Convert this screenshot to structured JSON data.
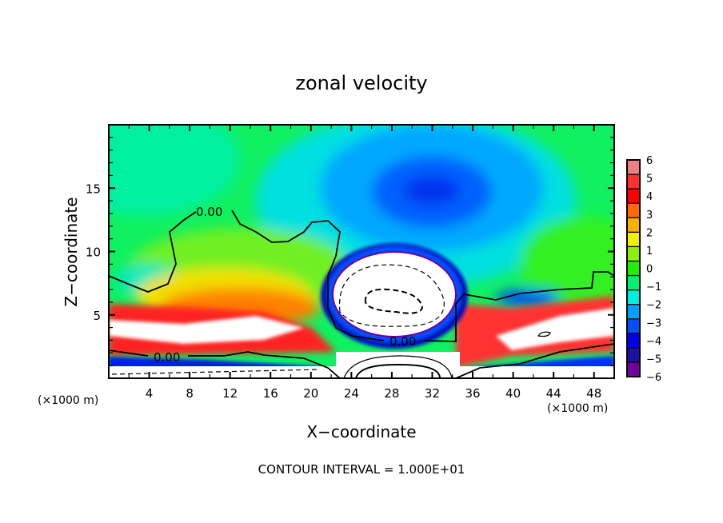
{
  "chart_data": {
    "type": "heatmap",
    "title": "zonal velocity",
    "xlabel": "X−coordinate",
    "ylabel": "Z−coordinate",
    "x_unit_left": "(×1000 m)",
    "x_unit_right": "(×1000 m)",
    "xlim": [
      0,
      50
    ],
    "ylim": [
      0,
      20
    ],
    "x_ticks": [
      "4",
      "8",
      "12",
      "16",
      "20",
      "24",
      "28",
      "32",
      "36",
      "40",
      "44",
      "48"
    ],
    "x_tick_values": [
      4,
      8,
      12,
      16,
      20,
      24,
      28,
      32,
      36,
      40,
      44,
      48
    ],
    "y_ticks": [
      "5",
      "10",
      "15"
    ],
    "y_tick_values": [
      5,
      10,
      15
    ],
    "footer": "CONTOUR INTERVAL = 1.000E+01",
    "contour_labels": [
      "0.00",
      "0.00",
      "0.00"
    ],
    "colorbar": {
      "labels": [
        "6",
        "5",
        "4",
        "3",
        "2",
        "1",
        "0",
        "−1",
        "−2",
        "−3",
        "−4",
        "−5",
        "−6"
      ],
      "values": [
        6,
        5,
        4,
        3,
        2,
        1,
        0,
        -1,
        -2,
        -3,
        -4,
        -5,
        -6
      ],
      "colors": [
        "#f08080",
        "#ff3030",
        "#ff0000",
        "#ff6a00",
        "#ffb000",
        "#f0f000",
        "#90f000",
        "#20f000",
        "#00f070",
        "#00f0e0",
        "#00a0ff",
        "#0050ff",
        "#0000e0",
        "#2010a0",
        "#7000a0"
      ]
    },
    "field_palette": {
      "white": "#ffffff",
      "pink": "#ff9090",
      "red": "#ff2020",
      "orange": "#ff8000",
      "yellow": "#f0f000",
      "lime": "#80ff00",
      "green": "#10f020",
      "seagreen": "#00f080",
      "cyan": "#00f0e0",
      "sky": "#00b0ff",
      "blue": "#0050ff",
      "navy": "#0000d0",
      "purple": "#6000a0"
    }
  }
}
